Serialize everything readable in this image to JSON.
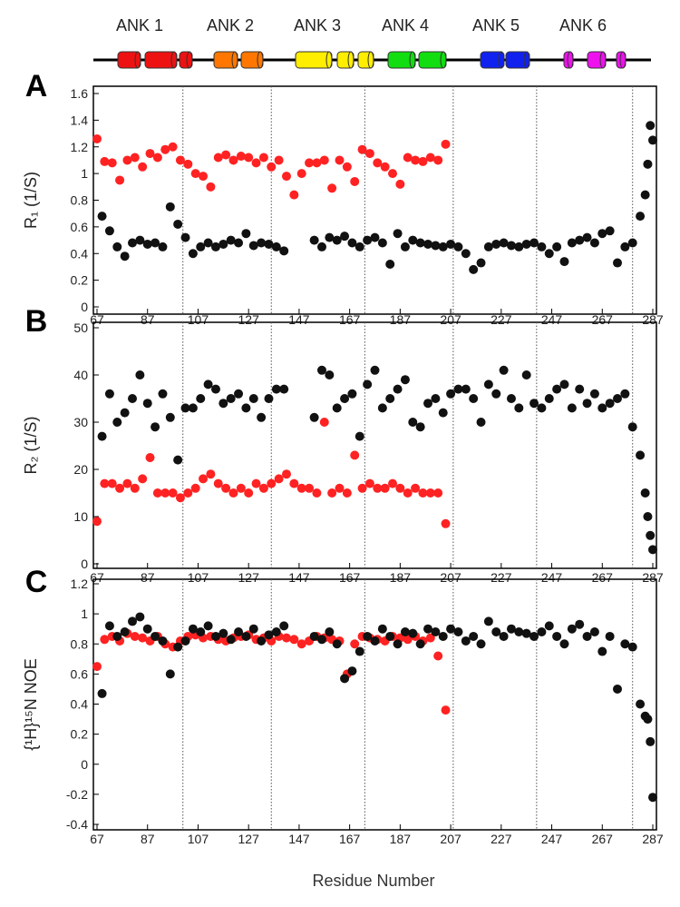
{
  "domains": [
    {
      "label": "ANK 1",
      "color": "#ee1111"
    },
    {
      "label": "ANK 2",
      "color": "#ff7700"
    },
    {
      "label": "ANK 3",
      "color": "#ffee00"
    },
    {
      "label": "ANK 4",
      "color": "#11dd11"
    },
    {
      "label": "ANK 5",
      "color": "#1122ee"
    },
    {
      "label": "ANK 6",
      "color": "#ee11ee"
    }
  ],
  "x_label": "Residue Number",
  "chart_data": [
    {
      "type": "scatter",
      "panel_label": "A",
      "y_label": "R₁ (1/S)",
      "xlim": [
        67,
        287
      ],
      "xticks": [
        67,
        87,
        107,
        127,
        147,
        167,
        187,
        207,
        227,
        247,
        267,
        287
      ],
      "ylim": [
        0,
        1.6
      ],
      "yticks": [
        0,
        0.2,
        0.4,
        0.6,
        0.8,
        1,
        1.2,
        1.4,
        1.6
      ],
      "vlines": [
        101,
        136,
        173,
        208,
        241,
        279
      ],
      "series": [
        {
          "color": "#ff2222",
          "x": [
            67,
            70,
            73,
            76,
            79,
            82,
            85,
            88,
            91,
            94,
            97,
            100,
            103,
            106,
            109,
            112,
            115,
            118,
            121,
            124,
            127,
            130,
            133,
            136,
            139,
            142,
            145,
            148,
            151,
            154,
            157,
            160,
            163,
            166,
            169,
            172,
            175,
            178,
            181,
            184,
            187,
            190,
            193,
            196,
            199,
            202,
            205
          ],
          "values": [
            1.26,
            1.09,
            1.08,
            0.95,
            1.1,
            1.12,
            1.05,
            1.15,
            1.12,
            1.18,
            1.2,
            1.1,
            1.07,
            1.0,
            0.98,
            0.9,
            1.12,
            1.14,
            1.1,
            1.13,
            1.12,
            1.08,
            1.12,
            1.05,
            1.1,
            0.98,
            0.84,
            1.0,
            1.08,
            1.08,
            1.1,
            0.89,
            1.1,
            1.05,
            0.94,
            1.18,
            1.15,
            1.08,
            1.05,
            1.0,
            0.92,
            1.12,
            1.1,
            1.09,
            1.12,
            1.1,
            1.22
          ]
        },
        {
          "color": "#111111",
          "x": [
            69,
            72,
            75,
            78,
            81,
            84,
            87,
            90,
            93,
            96,
            99,
            102,
            105,
            108,
            111,
            114,
            117,
            120,
            123,
            126,
            129,
            132,
            135,
            138,
            141,
            153,
            156,
            159,
            162,
            165,
            168,
            171,
            174,
            177,
            180,
            183,
            186,
            189,
            192,
            195,
            198,
            201,
            204,
            207,
            210,
            213,
            216,
            219,
            222,
            225,
            228,
            231,
            234,
            237,
            240,
            243,
            246,
            249,
            252,
            255,
            258,
            261,
            264,
            267,
            270,
            273,
            276,
            279,
            282,
            284,
            285,
            286,
            287
          ],
          "values": [
            0.68,
            0.57,
            0.45,
            0.38,
            0.48,
            0.5,
            0.47,
            0.48,
            0.45,
            0.75,
            0.62,
            0.52,
            0.4,
            0.45,
            0.48,
            0.45,
            0.47,
            0.5,
            0.48,
            0.55,
            0.46,
            0.48,
            0.47,
            0.45,
            0.42,
            0.5,
            0.45,
            0.52,
            0.5,
            0.53,
            0.48,
            0.45,
            0.5,
            0.52,
            0.48,
            0.32,
            0.55,
            0.45,
            0.5,
            0.48,
            0.47,
            0.46,
            0.45,
            0.47,
            0.45,
            0.4,
            0.28,
            0.33,
            0.45,
            0.47,
            0.48,
            0.46,
            0.45,
            0.47,
            0.48,
            0.45,
            0.4,
            0.45,
            0.34,
            0.48,
            0.5,
            0.52,
            0.48,
            0.55,
            0.57,
            0.33,
            0.45,
            0.48,
            0.68,
            0.84,
            1.07,
            1.36,
            1.25
          ]
        }
      ]
    },
    {
      "type": "scatter",
      "panel_label": "B",
      "y_label": "R₂ (1/S)",
      "xlim": [
        67,
        287
      ],
      "xticks": [
        67,
        87,
        107,
        127,
        147,
        167,
        187,
        207,
        227,
        247,
        267,
        287
      ],
      "ylim": [
        0,
        50
      ],
      "yticks": [
        0,
        10,
        20,
        30,
        40,
        50
      ],
      "vlines": [
        101,
        136,
        173,
        208,
        241,
        279
      ],
      "series": [
        {
          "color": "#ff2222",
          "x": [
            67,
            70,
            73,
            76,
            79,
            82,
            85,
            88,
            91,
            94,
            97,
            100,
            103,
            106,
            109,
            112,
            115,
            118,
            121,
            124,
            127,
            130,
            133,
            136,
            139,
            142,
            145,
            148,
            151,
            154,
            157,
            160,
            163,
            166,
            169,
            172,
            175,
            178,
            181,
            184,
            187,
            190,
            193,
            196,
            199,
            202,
            205
          ],
          "values": [
            9,
            17,
            17,
            16,
            17,
            16,
            18,
            22.5,
            15,
            15,
            15,
            14,
            15,
            16,
            18,
            19,
            17,
            16,
            15,
            16,
            15,
            17,
            16,
            17,
            18,
            19,
            17,
            16,
            16,
            15,
            30,
            15,
            16,
            15,
            23,
            16,
            17,
            16,
            16,
            17,
            16,
            15,
            16,
            15,
            15,
            15,
            8.5
          ]
        },
        {
          "color": "#111111",
          "x": [
            69,
            72,
            75,
            78,
            81,
            84,
            87,
            90,
            93,
            96,
            99,
            102,
            105,
            108,
            111,
            114,
            117,
            120,
            123,
            126,
            129,
            132,
            135,
            138,
            141,
            153,
            156,
            159,
            162,
            165,
            168,
            171,
            174,
            177,
            180,
            183,
            186,
            189,
            192,
            195,
            198,
            201,
            204,
            207,
            210,
            213,
            216,
            219,
            222,
            225,
            228,
            231,
            234,
            237,
            240,
            243,
            246,
            249,
            252,
            255,
            258,
            261,
            264,
            267,
            270,
            273,
            276,
            279,
            282,
            284,
            285,
            286,
            287
          ],
          "values": [
            27,
            36,
            30,
            32,
            35,
            40,
            34,
            29,
            36,
            31,
            22,
            33,
            33,
            35,
            38,
            37,
            34,
            35,
            36,
            33,
            35,
            31,
            35,
            37,
            37,
            31,
            41,
            40,
            33,
            35,
            36,
            27,
            38,
            41,
            33,
            35,
            37,
            39,
            30,
            29,
            34,
            35,
            32,
            36,
            37,
            37,
            35,
            30,
            38,
            36,
            41,
            35,
            33,
            40,
            34,
            33,
            35,
            37,
            38,
            33,
            37,
            34,
            36,
            33,
            34,
            35,
            36,
            29,
            23,
            15,
            10,
            6,
            3
          ]
        }
      ]
    },
    {
      "type": "scatter",
      "panel_label": "C",
      "y_label": "{¹H}¹⁵N NOE",
      "xlim": [
        67,
        287
      ],
      "xticks": [
        67,
        87,
        107,
        127,
        147,
        167,
        187,
        207,
        227,
        247,
        267,
        287
      ],
      "ylim": [
        -0.4,
        1.2
      ],
      "yticks": [
        -0.4,
        -0.2,
        0,
        0.2,
        0.4,
        0.6,
        0.8,
        1,
        1.2
      ],
      "vlines": [
        101,
        136,
        173,
        208,
        241,
        279
      ],
      "series": [
        {
          "color": "#ff2222",
          "x": [
            67,
            70,
            73,
            76,
            79,
            82,
            85,
            88,
            91,
            94,
            97,
            100,
            103,
            106,
            109,
            112,
            115,
            118,
            121,
            124,
            127,
            130,
            133,
            136,
            139,
            142,
            145,
            148,
            151,
            154,
            157,
            160,
            163,
            166,
            169,
            172,
            175,
            178,
            181,
            184,
            187,
            190,
            193,
            196,
            199,
            202,
            205
          ],
          "values": [
            0.65,
            0.83,
            0.85,
            0.82,
            0.87,
            0.85,
            0.84,
            0.82,
            0.85,
            0.8,
            0.78,
            0.82,
            0.85,
            0.86,
            0.84,
            0.85,
            0.83,
            0.82,
            0.84,
            0.85,
            0.86,
            0.83,
            0.84,
            0.82,
            0.85,
            0.84,
            0.83,
            0.8,
            0.82,
            0.85,
            0.84,
            0.83,
            0.82,
            0.6,
            0.8,
            0.85,
            0.84,
            0.83,
            0.82,
            0.85,
            0.84,
            0.83,
            0.85,
            0.82,
            0.84,
            0.72,
            0.36
          ]
        },
        {
          "color": "#111111",
          "x": [
            69,
            72,
            75,
            78,
            81,
            84,
            87,
            90,
            93,
            96,
            99,
            102,
            105,
            108,
            111,
            114,
            117,
            120,
            123,
            126,
            129,
            132,
            135,
            138,
            141,
            153,
            156,
            159,
            162,
            165,
            168,
            171,
            174,
            177,
            180,
            183,
            186,
            189,
            192,
            195,
            198,
            201,
            204,
            207,
            210,
            213,
            216,
            219,
            222,
            225,
            228,
            231,
            234,
            237,
            240,
            243,
            246,
            249,
            252,
            255,
            258,
            261,
            264,
            267,
            270,
            273,
            276,
            279,
            282,
            284,
            285,
            286,
            287
          ],
          "values": [
            0.47,
            0.92,
            0.85,
            0.88,
            0.95,
            0.98,
            0.9,
            0.85,
            0.82,
            0.6,
            0.78,
            0.82,
            0.9,
            0.88,
            0.92,
            0.85,
            0.87,
            0.83,
            0.88,
            0.85,
            0.9,
            0.82,
            0.86,
            0.88,
            0.92,
            0.85,
            0.83,
            0.88,
            0.8,
            0.57,
            0.62,
            0.75,
            0.85,
            0.82,
            0.9,
            0.85,
            0.8,
            0.88,
            0.87,
            0.8,
            0.9,
            0.88,
            0.85,
            0.9,
            0.88,
            0.82,
            0.85,
            0.8,
            0.95,
            0.88,
            0.85,
            0.9,
            0.88,
            0.87,
            0.85,
            0.88,
            0.92,
            0.85,
            0.8,
            0.9,
            0.93,
            0.85,
            0.88,
            0.75,
            0.85,
            0.5,
            0.8,
            0.78,
            0.4,
            0.32,
            0.3,
            0.15,
            -0.22
          ]
        }
      ]
    }
  ]
}
